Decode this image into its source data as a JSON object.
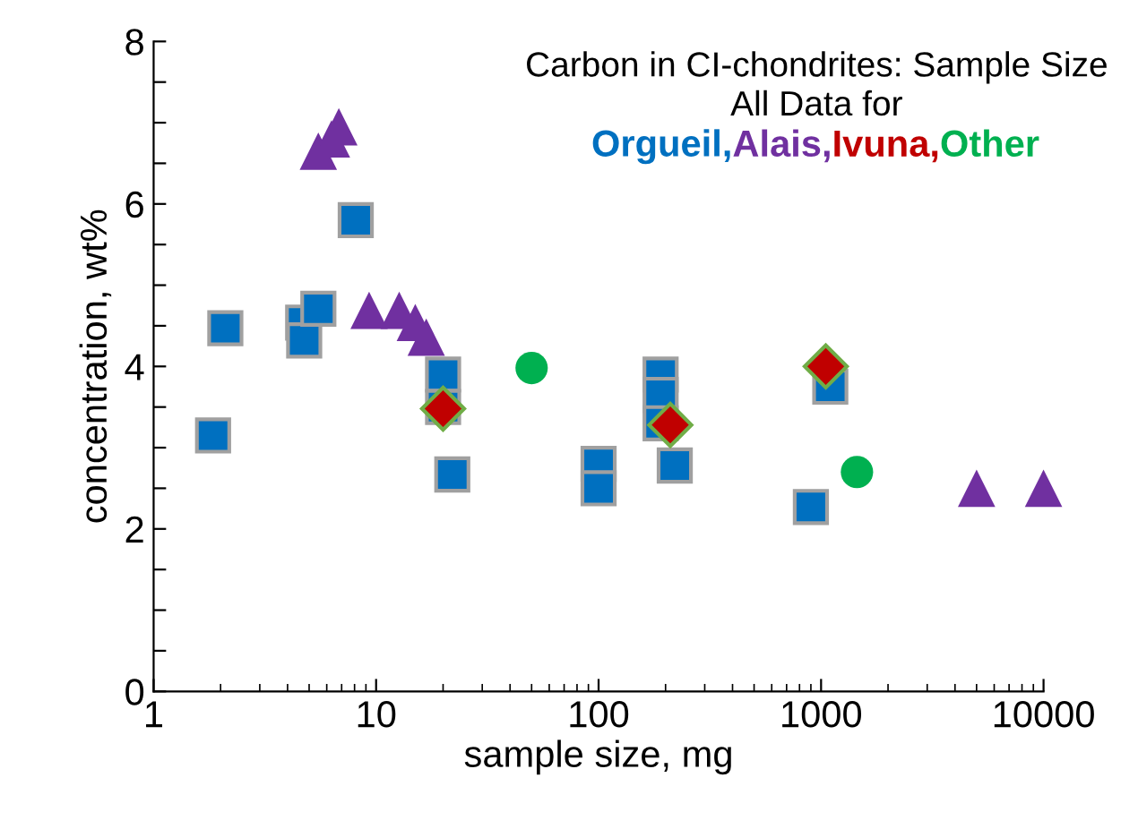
{
  "chart_data": {
    "type": "scatter",
    "title": "Carbon in CI-chondrites: Sample Size",
    "subtitle": "All Data for",
    "xlabel": "sample size, mg",
    "ylabel": "concentration, wt%",
    "log": "x",
    "xlim": [
      1,
      10000
    ],
    "xticks": [
      1,
      10,
      100,
      1000,
      10000
    ],
    "ylim": [
      0,
      8
    ],
    "yticks": [
      0,
      {
        "value": 0.5,
        "label": null
      },
      {
        "value": 1,
        "label": null
      },
      {
        "value": 1.5,
        "label": null
      },
      2,
      {
        "value": 2.5,
        "label": null
      },
      {
        "value": 3,
        "label": null
      },
      {
        "value": 3.5,
        "label": null
      },
      4,
      {
        "value": 4.5,
        "label": null
      },
      {
        "value": 5,
        "label": null
      },
      {
        "value": 5.5,
        "label": null
      },
      6,
      {
        "value": 6.5,
        "label": null
      },
      {
        "value": 7,
        "label": null
      },
      {
        "value": 7.5,
        "label": null
      },
      8
    ],
    "grid": false,
    "legend": "top right",
    "series": [
      {
        "name": "Orgueil,",
        "color": "#0070c0",
        "marker": "square",
        "x": [
          1.85,
          2.1,
          4.7,
          4.75,
          5.5,
          8.1,
          20,
          20,
          22,
          100,
          100,
          190,
          190,
          190,
          220,
          1100,
          900
        ],
        "values": [
          3.15,
          4.47,
          4.54,
          4.32,
          4.71,
          5.8,
          3.9,
          3.5,
          2.67,
          2.8,
          2.5,
          3.9,
          3.65,
          3.3,
          2.78,
          3.75,
          2.27
        ]
      },
      {
        "name": "Alais,",
        "color": "#7030a0",
        "marker": "triangle",
        "x": [
          5.5,
          6.3,
          6.8,
          9.3,
          12.7,
          15,
          16.8,
          5000,
          10000
        ],
        "values": [
          6.65,
          6.8,
          6.95,
          4.69,
          4.69,
          4.54,
          4.36,
          2.5,
          2.5
        ]
      },
      {
        "name": "Ivuna,",
        "color": "#c00000",
        "marker": "diamond",
        "x": [
          20,
          210,
          1050
        ],
        "values": [
          3.48,
          3.28,
          4.0
        ]
      },
      {
        "name": "Other",
        "color": "#00b050",
        "marker": "circle",
        "x": [
          50,
          1450
        ],
        "values": [
          3.98,
          2.7
        ]
      }
    ]
  }
}
